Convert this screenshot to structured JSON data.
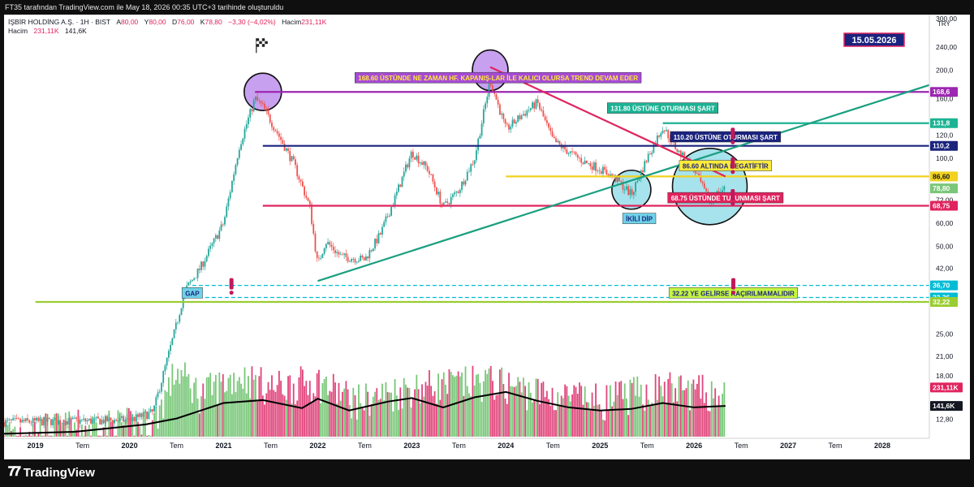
{
  "header": {
    "credit": "FT35 tarafından TradingView.com ile May 18, 2026 00:35 UTC+3 tarihinde oluşturuldu"
  },
  "legend": {
    "symbol": "İŞBİR HOLDİNG A.Ş. · 1H · BIST",
    "ohlc": [
      {
        "label": "A",
        "value": "80,00"
      },
      {
        "label": "Y",
        "value": "80,00"
      },
      {
        "label": "D",
        "value": "76,00"
      },
      {
        "label": "K",
        "value": "78,80"
      }
    ],
    "change": "−3,30 (−4,02%)",
    "volume_label": "Hacim",
    "volume_value": "231,11K",
    "row2_label": "Hacim",
    "row2_value1": "231,11K",
    "row2_value2": "141,6K"
  },
  "currency": "TRY",
  "date_badge": "15.05.2026",
  "footer": {
    "logo_glyph": "𝟕𝟕",
    "brand": "TradingView"
  },
  "colors": {
    "up": "#26a69a",
    "down": "#ef5350",
    "vol_up": "#7ac77a",
    "vol_down": "#e0457b",
    "purple": "#9c27b0",
    "navy": "#1a237e",
    "teal": "#1cb394",
    "pink": "#e0245e",
    "yellow": "#ffeb3b",
    "lime": "#9acd32",
    "cyan": "#00bcd4"
  },
  "chart_data": {
    "type": "candlestick",
    "timeframe": "1W",
    "y_scale": "log",
    "ylim": [
      11,
      310
    ],
    "x_range": [
      "2018-09",
      "2028-07"
    ],
    "x_ticks": [
      {
        "label": "2019",
        "x": "2019-01"
      },
      {
        "label": "Tem",
        "x": "2019-07"
      },
      {
        "label": "2020",
        "x": "2020-01"
      },
      {
        "label": "Tem",
        "x": "2020-07"
      },
      {
        "label": "2021",
        "x": "2021-01"
      },
      {
        "label": "Tem",
        "x": "2021-07"
      },
      {
        "label": "2022",
        "x": "2022-01"
      },
      {
        "label": "Tem",
        "x": "2022-07"
      },
      {
        "label": "2023",
        "x": "2023-01"
      },
      {
        "label": "Tem",
        "x": "2023-07"
      },
      {
        "label": "2024",
        "x": "2024-01"
      },
      {
        "label": "Tem",
        "x": "2024-07"
      },
      {
        "label": "2025",
        "x": "2025-01"
      },
      {
        "label": "Tem",
        "x": "2025-07"
      },
      {
        "label": "2026",
        "x": "2026-01"
      },
      {
        "label": "Tem",
        "x": "2026-07"
      },
      {
        "label": "2027",
        "x": "2027-01"
      },
      {
        "label": "Tem",
        "x": "2027-07"
      },
      {
        "label": "2028",
        "x": "2028-01"
      }
    ],
    "y_ticks": [
      "300,00",
      "240,00",
      "200,0",
      "160,0",
      "120,0",
      "100,0",
      "72,00",
      "60,00",
      "50,00",
      "42,00",
      "25,00",
      "21,00",
      "18,00",
      "12,80"
    ],
    "y_tick_values": [
      300,
      240,
      200,
      160,
      120,
      100,
      72,
      60,
      50,
      42,
      25,
      21,
      18,
      12.8
    ],
    "price_path": [
      [
        "2018-09",
        12.5
      ],
      [
        "2019-06",
        12.6
      ],
      [
        "2020-01",
        12.7
      ],
      [
        "2020-04",
        13.5
      ],
      [
        "2020-07",
        27
      ],
      [
        "2020-08",
        35
      ],
      [
        "2020-10",
        42
      ],
      [
        "2021-01",
        60
      ],
      [
        "2021-03",
        110
      ],
      [
        "2021-05",
        160
      ],
      [
        "2021-06",
        150
      ],
      [
        "2021-08",
        120
      ],
      [
        "2021-10",
        95
      ],
      [
        "2021-12",
        68
      ],
      [
        "2022-01",
        43
      ],
      [
        "2022-02",
        52
      ],
      [
        "2022-04",
        46
      ],
      [
        "2022-07",
        45
      ],
      [
        "2022-09",
        55
      ],
      [
        "2022-11",
        75
      ],
      [
        "2023-01",
        105
      ],
      [
        "2023-03",
        92
      ],
      [
        "2023-05",
        68
      ],
      [
        "2023-07",
        78
      ],
      [
        "2023-09",
        100
      ],
      [
        "2023-11",
        185
      ],
      [
        "2024-01",
        125
      ],
      [
        "2024-03",
        140
      ],
      [
        "2024-05",
        155
      ],
      [
        "2024-07",
        115
      ],
      [
        "2024-09",
        105
      ],
      [
        "2024-11",
        97
      ],
      [
        "2025-01",
        92
      ],
      [
        "2025-03",
        85
      ],
      [
        "2025-05",
        75
      ],
      [
        "2025-07",
        100
      ],
      [
        "2025-09",
        128
      ],
      [
        "2025-11",
        105
      ],
      [
        "2026-01",
        92
      ],
      [
        "2026-03",
        70
      ],
      [
        "2026-04",
        76
      ],
      [
        "2026-05",
        78.8
      ]
    ],
    "volume_ylim": [
      11,
      32
    ],
    "volume_level_hint": [
      [
        "2018-09",
        11.5
      ],
      [
        "2020-04",
        12.2
      ],
      [
        "2020-07",
        20
      ],
      [
        "2020-10",
        16
      ],
      [
        "2021-03",
        19
      ],
      [
        "2021-07",
        17
      ],
      [
        "2022-01",
        18
      ],
      [
        "2022-06",
        15
      ],
      [
        "2023-01",
        17
      ],
      [
        "2023-11",
        18
      ],
      [
        "2024-06",
        16
      ],
      [
        "2025-01",
        15
      ],
      [
        "2025-09",
        17
      ],
      [
        "2026-05",
        16
      ]
    ],
    "volume_ma": [
      [
        "2018-09",
        11.3
      ],
      [
        "2019-06",
        11.5
      ],
      [
        "2020-03",
        12.3
      ],
      [
        "2020-07",
        13.0
      ],
      [
        "2020-11",
        14.3
      ],
      [
        "2021-01",
        15.0
      ],
      [
        "2021-06",
        15.4
      ],
      [
        "2021-11",
        14.3
      ],
      [
        "2022-01",
        15.6
      ],
      [
        "2022-05",
        14.0
      ],
      [
        "2022-10",
        15.2
      ],
      [
        "2023-01",
        15.7
      ],
      [
        "2023-05",
        14.4
      ],
      [
        "2023-09",
        15.8
      ],
      [
        "2024-01",
        16.6
      ],
      [
        "2024-05",
        15.3
      ],
      [
        "2024-09",
        14.4
      ],
      [
        "2025-01",
        14.0
      ],
      [
        "2025-05",
        14.2
      ],
      [
        "2025-09",
        15.0
      ],
      [
        "2026-01",
        14.4
      ],
      [
        "2026-05",
        14.6
      ]
    ],
    "levels": [
      {
        "name": "168-6",
        "value": 168.6,
        "label": "168,6",
        "color": "#9c27b0",
        "from": "2021-05"
      },
      {
        "name": "131-8",
        "value": 131.8,
        "label": "131,8",
        "color": "#1cb394",
        "from": "2025-09"
      },
      {
        "name": "110-2",
        "value": 110.2,
        "label": "110,2",
        "color": "#1a237e",
        "from": "2021-06"
      },
      {
        "name": "86-60",
        "value": 86.6,
        "label": "86,60",
        "color": "#f2d21f",
        "from": "2024-01"
      },
      {
        "name": "78-80",
        "value": 78.8,
        "label": "78,80",
        "color": "#7ac77a",
        "from": null
      },
      {
        "name": "68-75",
        "value": 68.75,
        "label": "68,75",
        "color": "#e0245e",
        "from": "2021-06"
      },
      {
        "name": "36-70",
        "value": 36.7,
        "label": "36,70",
        "color": "#00bcd4",
        "from": "2020-09",
        "dashed": true
      },
      {
        "name": "33-36",
        "value": 33.36,
        "label": "33,36",
        "color": "#00bcd4",
        "from": "2020-09",
        "dashed": true
      },
      {
        "name": "32-22",
        "value": 32.22,
        "label": "32,22",
        "color": "#9acd32",
        "from": "2019-01"
      }
    ],
    "volume_labels": [
      {
        "name": "vol-231k",
        "label": "231,11K",
        "color": "#e0245e",
        "volume": 17.3
      },
      {
        "name": "vol-141k",
        "label": "141,6K",
        "color": "#131722",
        "volume": 14.6
      }
    ],
    "trendlines": [
      {
        "name": "descending-trendline",
        "color": "#e0245e",
        "from": [
          "2023-11",
          205
        ],
        "to": [
          "2026-05",
          86.6
        ]
      },
      {
        "name": "ascending-trendline",
        "color": "#1a9f80",
        "from": [
          "2022-01",
          38
        ],
        "to": [
          "2028-07",
          178
        ]
      }
    ],
    "circles": [
      {
        "name": "circle-2021-top",
        "x": "2021-06",
        "y": 168.6,
        "rx": 23,
        "ry": 23,
        "fill": "#c8a0f0"
      },
      {
        "name": "circle-2023-top",
        "x": "2023-11",
        "y": 200,
        "rx": 22,
        "ry": 25,
        "fill": "#c8a0f0"
      },
      {
        "name": "circle-double-bottom",
        "x": "2025-05",
        "y": 78,
        "rx": 24,
        "ry": 24,
        "fill": "#a7e3ec"
      },
      {
        "name": "circle-2026-bottom",
        "x": "2026-03",
        "y": 80,
        "rx": 46,
        "ry": 47,
        "fill": "#a7e3ec"
      }
    ],
    "annotations": [
      {
        "name": "note-168",
        "text": "168.60 ÜSTÜNDE NE ZAMAN HF. KAPANIŞ-LAR İLE KALICI OLURSA TREND DEVAM EDER",
        "x": "2023-12",
        "y": 188,
        "bg": "#a64bd6",
        "fg": "#ffeb3b"
      },
      {
        "name": "note-131",
        "text": "131.80 ÜSTÜNE OTURMASI ŞART",
        "x": "2025-09",
        "y": 148,
        "bg": "#1cb394",
        "fg": "#ffffff"
      },
      {
        "name": "note-110",
        "text": "110.20 ÜSTÜNE OTURMASI ŞART",
        "x": "2026-05",
        "y": 118,
        "bg": "#1a237e",
        "fg": "#ffffff"
      },
      {
        "name": "note-86",
        "text": "86.60 ALTINDA NEGATİFTİR",
        "x": "2026-05",
        "y": 94,
        "bg": "#ffeb3b",
        "fg": "#1a237e"
      },
      {
        "name": "note-68",
        "text": "68.75 ÜSTÜNDE TUTUNMASI ŞART",
        "x": "2026-05",
        "y": 73,
        "bg": "#e0245e",
        "fg": "#ffffff"
      },
      {
        "name": "note-32",
        "text": "32.22 YE GELİRSE KAÇIRILMAMALIDIR",
        "x": "2026-06",
        "y": 34.5,
        "bg": "#c5f542",
        "fg": "#1a237e"
      },
      {
        "name": "note-gap",
        "text": "GAP",
        "x": "2020-09",
        "y": 34.5,
        "bg": "#6fd2e8",
        "fg": "#1a237e"
      },
      {
        "name": "note-ikili-dip",
        "text": "İKİLİ DİP",
        "x": "2025-06",
        "y": 62,
        "bg": "#6fd2e8",
        "fg": "#1a237e"
      }
    ]
  }
}
